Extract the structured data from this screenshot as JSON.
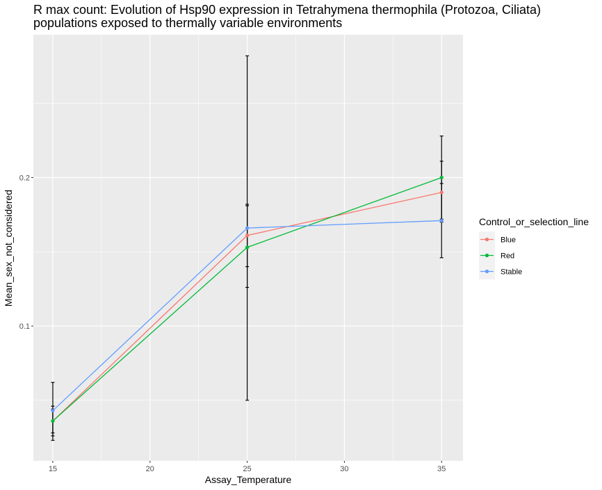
{
  "chart_data": {
    "type": "line",
    "title_line1": "R max count: Evolution of Hsp90 expression in Tetrahymena thermophila (Protozoa, Ciliata)",
    "title_line2": "populations exposed to thermally variable environments",
    "xlabel": "Assay_Temperature",
    "ylabel": "Mean_sex_not_considered",
    "xlim": [
      14,
      36.1
    ],
    "ylim": [
      0.0092,
      0.2962
    ],
    "x_ticks": [
      15,
      20,
      25,
      30,
      35
    ],
    "x_tick_labels": [
      "15",
      "20",
      "25",
      "30",
      "35"
    ],
    "y_ticks": [
      0.1,
      0.2
    ],
    "y_tick_labels": [
      "0.1",
      "0.2"
    ],
    "grid": true,
    "legend_position": "right",
    "legend_title": "Control_or_selection_line",
    "x": [
      15,
      25,
      35
    ],
    "series": [
      {
        "name": "Blue",
        "color": "#F8766D",
        "values": [
          0.036,
          0.161,
          0.19
        ],
        "error_low": [
          0.026,
          0.14,
          0.17
        ],
        "error_high": [
          0.046,
          0.182,
          0.211
        ]
      },
      {
        "name": "Red",
        "color": "#00BA38",
        "values": [
          0.036,
          0.153,
          0.2
        ],
        "error_low": [
          0.028,
          0.126,
          0.172
        ],
        "error_high": [
          0.044,
          0.181,
          0.228
        ]
      },
      {
        "name": "Stable",
        "color": "#619CFF",
        "values": [
          0.043,
          0.166,
          0.171
        ],
        "error_low": [
          0.023,
          0.05,
          0.146
        ],
        "error_high": [
          0.062,
          0.282,
          0.196
        ]
      }
    ]
  }
}
